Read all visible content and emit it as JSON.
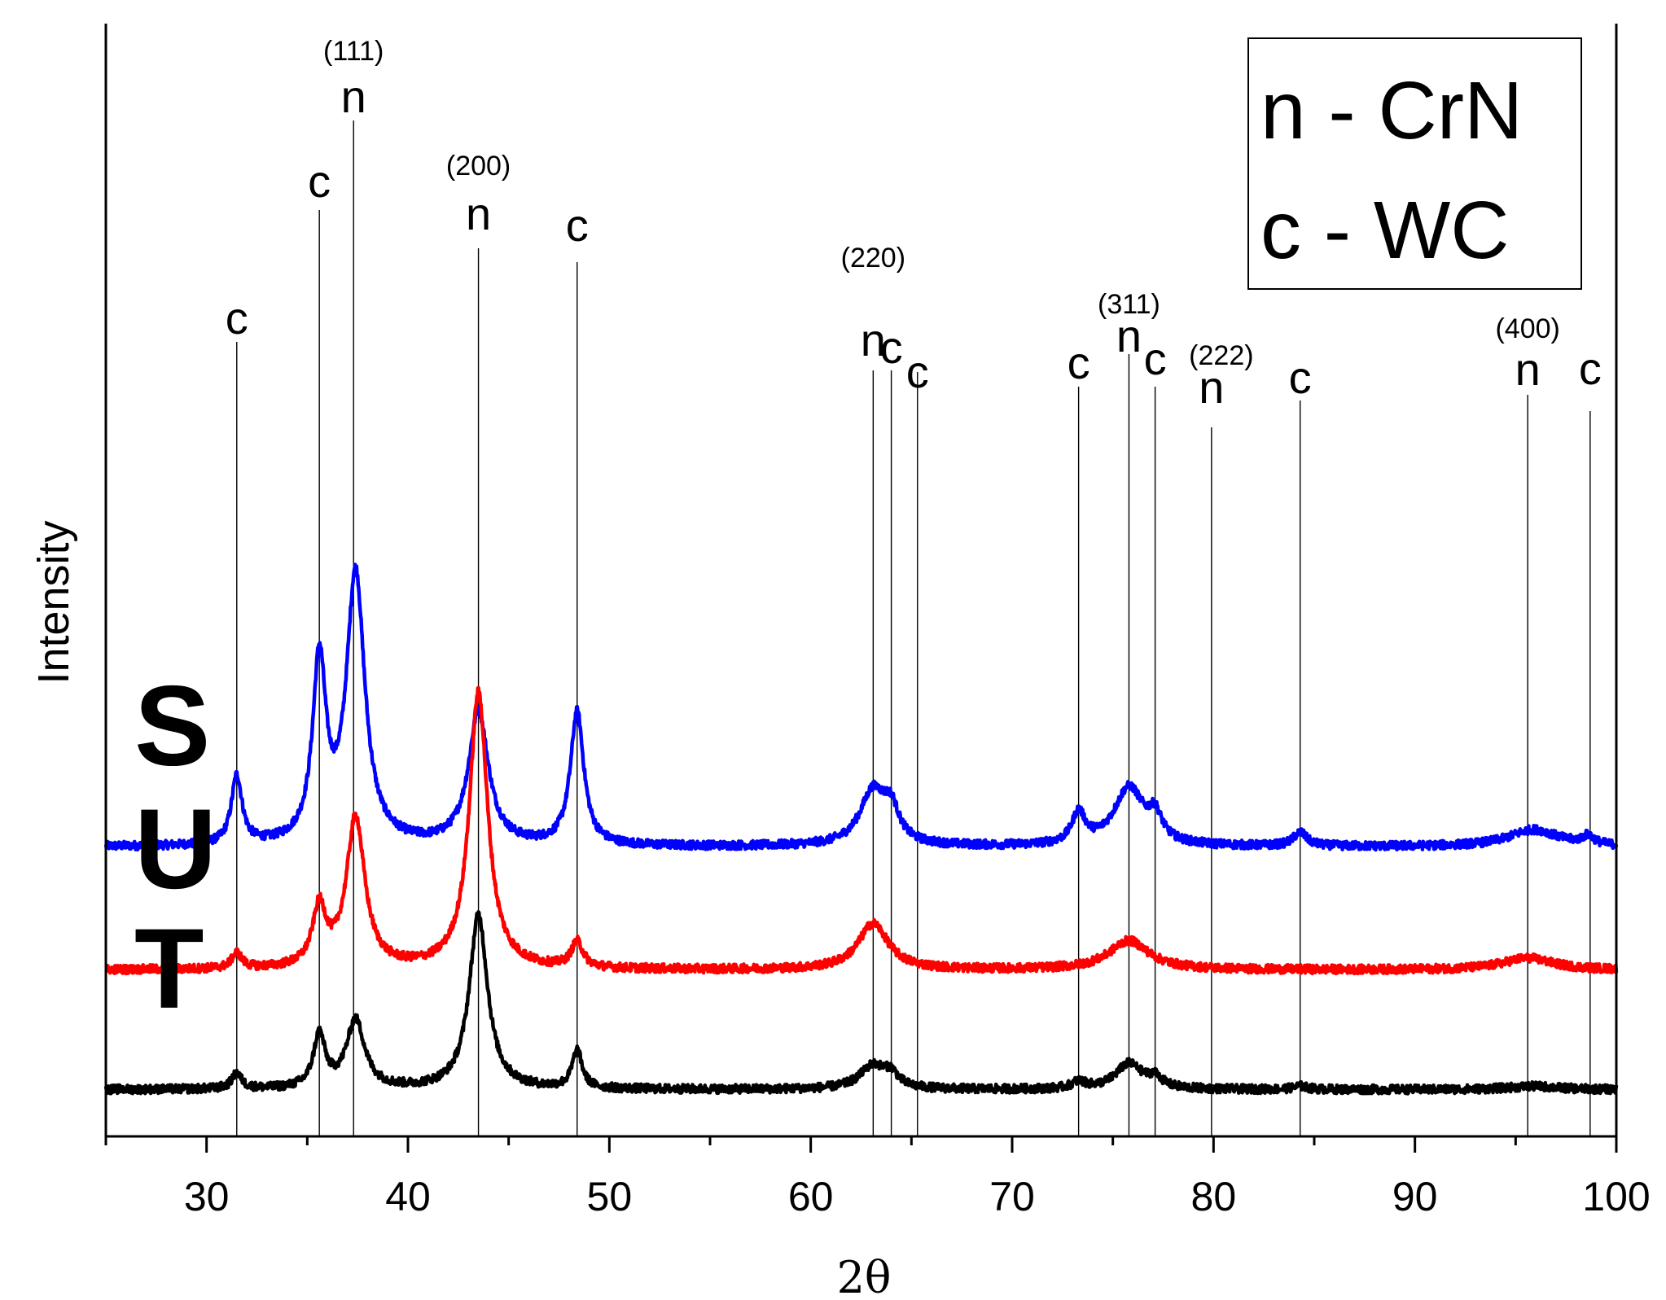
{
  "chart_data": {
    "type": "line",
    "title": "",
    "xlabel": "2θ",
    "ylabel": "Intensity",
    "xlim": [
      25,
      100
    ],
    "xticks": [
      30,
      40,
      50,
      60,
      70,
      80,
      90,
      100
    ],
    "tick_labels": [
      "30",
      "40",
      "50",
      "60",
      "70",
      "80",
      "90",
      "100"
    ],
    "yticks_shown": false,
    "legend": {
      "position": "top-right",
      "entries": [
        "n - CrN",
        "c - WC"
      ]
    },
    "colors": {
      "S": "#0000ff",
      "U": "#ff0000",
      "T": "#000000"
    },
    "series": [
      {
        "name": "S",
        "baseline": 1.45,
        "peaks": [
          {
            "x": 31.5,
            "h": 0.4,
            "w": 0.32
          },
          {
            "x": 35.6,
            "h": 1.05,
            "w": 0.4
          },
          {
            "x": 37.4,
            "h": 1.58,
            "w": 0.55
          },
          {
            "x": 43.5,
            "h": 0.78,
            "w": 0.6
          },
          {
            "x": 48.4,
            "h": 0.78,
            "w": 0.4
          },
          {
            "x": 63.1,
            "h": 0.32,
            "w": 0.8
          },
          {
            "x": 64.0,
            "h": 0.17,
            "w": 0.45
          },
          {
            "x": 73.3,
            "h": 0.18,
            "w": 0.4
          },
          {
            "x": 75.8,
            "h": 0.34,
            "w": 0.9
          },
          {
            "x": 77.1,
            "h": 0.14,
            "w": 0.4
          },
          {
            "x": 84.3,
            "h": 0.08,
            "w": 0.4
          },
          {
            "x": 95.9,
            "h": 0.1,
            "w": 1.5
          },
          {
            "x": 98.6,
            "h": 0.05,
            "w": 0.35
          }
        ]
      },
      {
        "name": "U",
        "baseline": 0.73,
        "peaks": [
          {
            "x": 31.5,
            "h": 0.09,
            "w": 0.3
          },
          {
            "x": 35.6,
            "h": 0.34,
            "w": 0.4
          },
          {
            "x": 37.4,
            "h": 0.88,
            "w": 0.55
          },
          {
            "x": 43.5,
            "h": 1.62,
            "w": 0.55
          },
          {
            "x": 48.4,
            "h": 0.15,
            "w": 0.35
          },
          {
            "x": 63.1,
            "h": 0.27,
            "w": 0.9
          },
          {
            "x": 75.8,
            "h": 0.17,
            "w": 1.2
          },
          {
            "x": 95.6,
            "h": 0.07,
            "w": 1.5
          }
        ]
      },
      {
        "name": "T",
        "baseline": 0.03,
        "peaks": [
          {
            "x": 31.5,
            "h": 0.09,
            "w": 0.3
          },
          {
            "x": 35.6,
            "h": 0.31,
            "w": 0.35
          },
          {
            "x": 37.4,
            "h": 0.4,
            "w": 0.55
          },
          {
            "x": 43.5,
            "h": 1.02,
            "w": 0.55
          },
          {
            "x": 48.4,
            "h": 0.22,
            "w": 0.3
          },
          {
            "x": 63.1,
            "h": 0.14,
            "w": 0.8
          },
          {
            "x": 64.0,
            "h": 0.07,
            "w": 0.4
          },
          {
            "x": 73.3,
            "h": 0.04,
            "w": 0.4
          },
          {
            "x": 75.8,
            "h": 0.15,
            "w": 0.8
          },
          {
            "x": 77.1,
            "h": 0.06,
            "w": 0.4
          },
          {
            "x": 84.3,
            "h": 0.02,
            "w": 0.4
          },
          {
            "x": 95.9,
            "h": 0.02,
            "w": 1.5
          }
        ]
      }
    ],
    "reference_lines": [
      31.5,
      35.6,
      37.3,
      43.5,
      48.4,
      63.1,
      64.0,
      65.3,
      73.3,
      75.8,
      77.1,
      79.9,
      84.3,
      95.6,
      98.7
    ],
    "peak_labels": [
      {
        "x": 31.5,
        "text": "c",
        "hkl": ""
      },
      {
        "x": 35.6,
        "text": "c",
        "hkl": ""
      },
      {
        "x": 37.3,
        "text": "n",
        "hkl": "(111)"
      },
      {
        "x": 43.5,
        "text": "n",
        "hkl": "(200)"
      },
      {
        "x": 48.4,
        "text": "c",
        "hkl": ""
      },
      {
        "x": 63.1,
        "text": "n",
        "hkl": "(220)"
      },
      {
        "x": 64.0,
        "text": "c",
        "hkl": ""
      },
      {
        "x": 65.3,
        "text": "c",
        "hkl": ""
      },
      {
        "x": 73.3,
        "text": "c",
        "hkl": ""
      },
      {
        "x": 75.8,
        "text": "n",
        "hkl": "(311)"
      },
      {
        "x": 77.1,
        "text": "c",
        "hkl": ""
      },
      {
        "x": 79.9,
        "text": "n",
        "hkl": "(222)"
      },
      {
        "x": 84.3,
        "text": "c",
        "hkl": ""
      },
      {
        "x": 95.6,
        "text": "n",
        "hkl": "(400)"
      },
      {
        "x": 98.7,
        "text": "c",
        "hkl": ""
      }
    ]
  }
}
